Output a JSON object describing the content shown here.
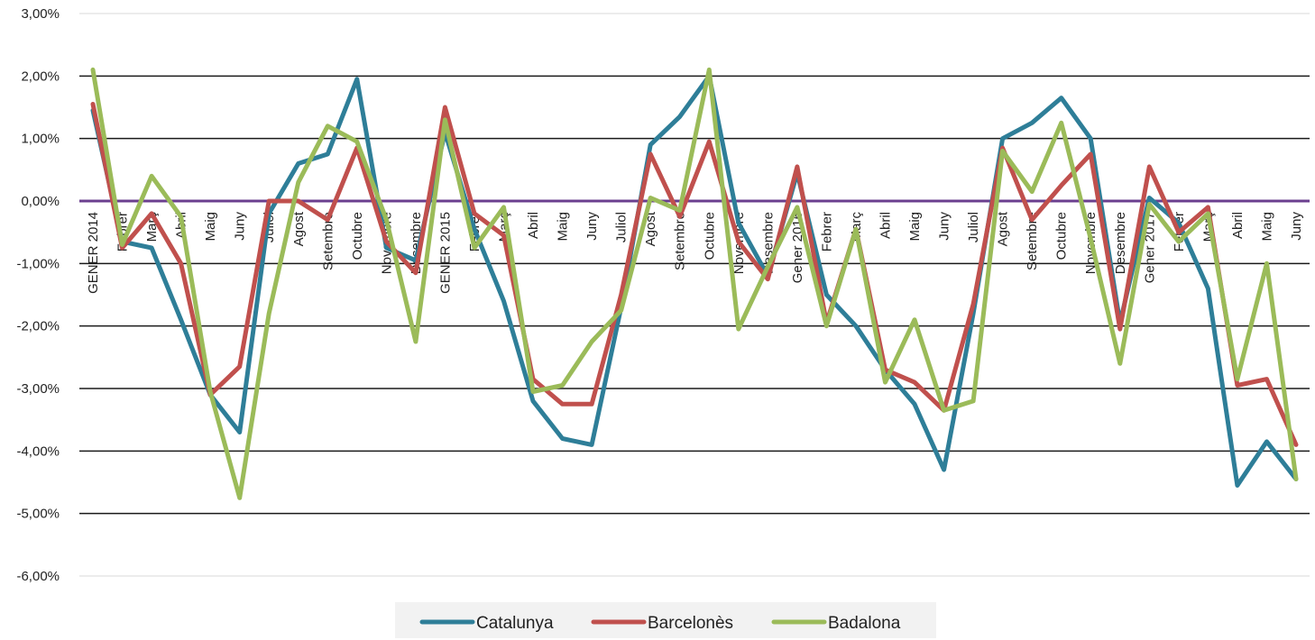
{
  "chart_data": {
    "type": "line",
    "title": "",
    "xlabel": "",
    "ylabel": "",
    "ylim": [
      -6,
      3
    ],
    "yticks": [
      -6,
      -5,
      -4,
      -3,
      -2,
      -1,
      0,
      1,
      2,
      3
    ],
    "ytick_labels": [
      "-6,00%",
      "-5,00%",
      "-4,00%",
      "-3,00%",
      "-2,00%",
      "-1,00%",
      "0,00%",
      "1,00%",
      "2,00%",
      "3,00%"
    ],
    "grid": true,
    "legend_position": "bottom",
    "baseline_color": "#6b3f8f",
    "categories": [
      "GENER 2014",
      "Febrer",
      "Març",
      "Abril",
      "Maig",
      "Juny",
      "Juliol",
      "Agost",
      "Setembre",
      "Octubre",
      "Novembre",
      "Desembre",
      "GENER 2015",
      "Febrer",
      "Març",
      "Abril",
      "Maig",
      "Juny",
      "Juliol",
      "Agost",
      "Setembre",
      "Octubre",
      "Novembre",
      "Desembre",
      "Gener 2016",
      "Febrer",
      "Març",
      "Abril",
      "Maig",
      "Juny",
      "Juliol",
      "Agost",
      "Setembre",
      "Octubre",
      "Novembre",
      "Desembre",
      "Gener 2017",
      "Febrer",
      "Març",
      "Abril",
      "Maig",
      "Juny"
    ],
    "series": [
      {
        "name": "Catalunya",
        "color": "#2e7e98",
        "values": [
          1.45,
          -0.65,
          -0.75,
          -1.9,
          -3.1,
          -3.7,
          -0.2,
          0.6,
          0.75,
          1.95,
          -0.75,
          -0.95,
          1.1,
          -0.45,
          -1.6,
          -3.2,
          -3.8,
          -3.9,
          -1.7,
          0.9,
          1.35,
          2.0,
          -0.35,
          -1.2,
          0.45,
          -1.5,
          -2.0,
          -2.7,
          -3.25,
          -4.3,
          -1.8,
          1.0,
          1.25,
          1.65,
          1.0,
          -1.95,
          0.05,
          -0.35,
          -1.4,
          -4.55,
          -3.85,
          -4.45
        ]
      },
      {
        "name": "Barcelonès",
        "color": "#c0504d",
        "values": [
          1.55,
          -0.75,
          -0.2,
          -1.0,
          -3.1,
          -2.65,
          0.0,
          0.0,
          -0.3,
          0.85,
          -0.65,
          -1.15,
          1.5,
          -0.2,
          -0.55,
          -2.85,
          -3.25,
          -3.25,
          -1.5,
          0.75,
          -0.25,
          0.95,
          -0.65,
          -1.25,
          0.55,
          -1.95,
          -0.45,
          -2.7,
          -2.9,
          -3.35,
          -1.65,
          0.85,
          -0.3,
          0.25,
          0.75,
          -2.05,
          0.55,
          -0.5,
          -0.1,
          -2.95,
          -2.85,
          -3.9
        ]
      },
      {
        "name": "Badalona",
        "color": "#9bbb59",
        "values": [
          2.1,
          -0.7,
          0.4,
          -0.25,
          -3.05,
          -4.75,
          -1.8,
          0.3,
          1.2,
          0.95,
          -0.3,
          -2.25,
          1.3,
          -0.75,
          -0.1,
          -3.05,
          -2.95,
          -2.25,
          -1.75,
          0.05,
          -0.15,
          2.1,
          -2.05,
          -1.05,
          -0.1,
          -2.0,
          -0.45,
          -2.9,
          -1.9,
          -3.35,
          -3.2,
          0.8,
          0.15,
          1.25,
          -0.6,
          -2.6,
          -0.05,
          -0.65,
          -0.2,
          -2.85,
          -1.0,
          -4.45
        ]
      }
    ]
  }
}
